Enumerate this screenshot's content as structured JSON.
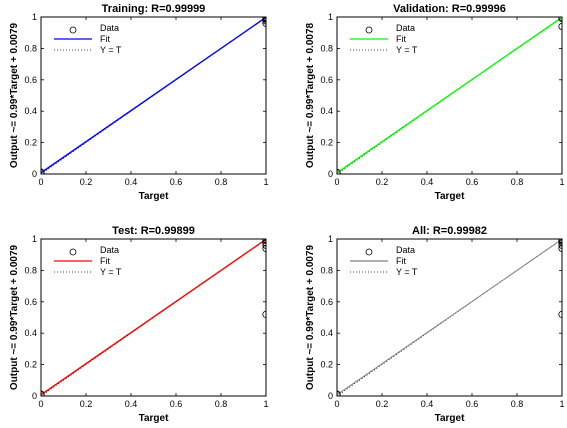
{
  "chart_data": [
    {
      "type": "scatter",
      "title": "Training: R=0.99999",
      "xlabel": "Target",
      "ylabel": "Output ~= 0.99*Target + 0.0079",
      "xlim": [
        0,
        1
      ],
      "ylim": [
        0,
        1
      ],
      "x_ticks": [
        "0",
        "0.2",
        "0.4",
        "0.6",
        "0.8",
        "1"
      ],
      "y_ticks": [
        "0",
        "0.2",
        "0.4",
        "0.6",
        "0.8",
        "1"
      ],
      "fit_color": "#0000ff",
      "fit": {
        "slope": 0.99,
        "intercept": 0.0079
      },
      "legend": {
        "position": "top-left",
        "entries": [
          "Data",
          "Fit",
          "Y = T"
        ]
      },
      "points": [
        [
          0,
          0.008
        ],
        [
          0,
          0.01
        ],
        [
          0,
          0.012
        ],
        [
          1,
          0.998
        ],
        [
          1,
          0.995
        ],
        [
          1,
          0.99
        ],
        [
          1,
          0.985
        ],
        [
          1,
          0.975
        ],
        [
          1,
          0.96
        ]
      ],
      "grid": false
    },
    {
      "type": "scatter",
      "title": "Validation: R=0.99996",
      "xlabel": "Target",
      "ylabel": "Output ~= 0.99*Target + 0.0078",
      "xlim": [
        0,
        1
      ],
      "ylim": [
        0,
        1
      ],
      "x_ticks": [
        "0",
        "0.2",
        "0.4",
        "0.6",
        "0.8",
        "1"
      ],
      "y_ticks": [
        "0",
        "0.2",
        "0.4",
        "0.6",
        "0.8",
        "1"
      ],
      "fit_color": "#00ff00",
      "fit": {
        "slope": 0.99,
        "intercept": 0.0078
      },
      "legend": {
        "position": "top-left",
        "entries": [
          "Data",
          "Fit",
          "Y = T"
        ]
      },
      "points": [
        [
          0,
          0.008
        ],
        [
          0,
          0.01
        ],
        [
          1,
          0.998
        ],
        [
          1,
          0.99
        ],
        [
          1,
          0.94
        ]
      ],
      "grid": false
    },
    {
      "type": "scatter",
      "title": "Test: R=0.99899",
      "xlabel": "Target",
      "ylabel": "Output ~= 0.99*Target + 0.0079",
      "xlim": [
        0,
        1
      ],
      "ylim": [
        0,
        1
      ],
      "x_ticks": [
        "0",
        "0.2",
        "0.4",
        "0.6",
        "0.8",
        "1"
      ],
      "y_ticks": [
        "0",
        "0.2",
        "0.4",
        "0.6",
        "0.8",
        "1"
      ],
      "fit_color": "#ff0000",
      "fit": {
        "slope": 0.99,
        "intercept": 0.0079
      },
      "legend": {
        "position": "top-left",
        "entries": [
          "Data",
          "Fit",
          "Y = T"
        ]
      },
      "points": [
        [
          0,
          0.008
        ],
        [
          0,
          0.012
        ],
        [
          1,
          0.998
        ],
        [
          1,
          0.99
        ],
        [
          1,
          0.975
        ],
        [
          1,
          0.96
        ],
        [
          1,
          0.94
        ],
        [
          1,
          0.52
        ]
      ],
      "grid": false
    },
    {
      "type": "scatter",
      "title": "All: R=0.99982",
      "xlabel": "Target",
      "ylabel": "Output ~= 0.99*Target + 0.0079",
      "xlim": [
        0,
        1
      ],
      "ylim": [
        0,
        1
      ],
      "x_ticks": [
        "0",
        "0.2",
        "0.4",
        "0.6",
        "0.8",
        "1"
      ],
      "y_ticks": [
        "0",
        "0.2",
        "0.4",
        "0.6",
        "0.8",
        "1"
      ],
      "fit_color": "#808080",
      "fit": {
        "slope": 0.99,
        "intercept": 0.0079
      },
      "legend": {
        "position": "top-left",
        "entries": [
          "Data",
          "Fit",
          "Y = T"
        ]
      },
      "points": [
        [
          0,
          0.008
        ],
        [
          0,
          0.012
        ],
        [
          1,
          0.998
        ],
        [
          1,
          0.99
        ],
        [
          1,
          0.985
        ],
        [
          1,
          0.975
        ],
        [
          1,
          0.96
        ],
        [
          1,
          0.94
        ],
        [
          1,
          0.52
        ]
      ],
      "grid": false
    }
  ]
}
